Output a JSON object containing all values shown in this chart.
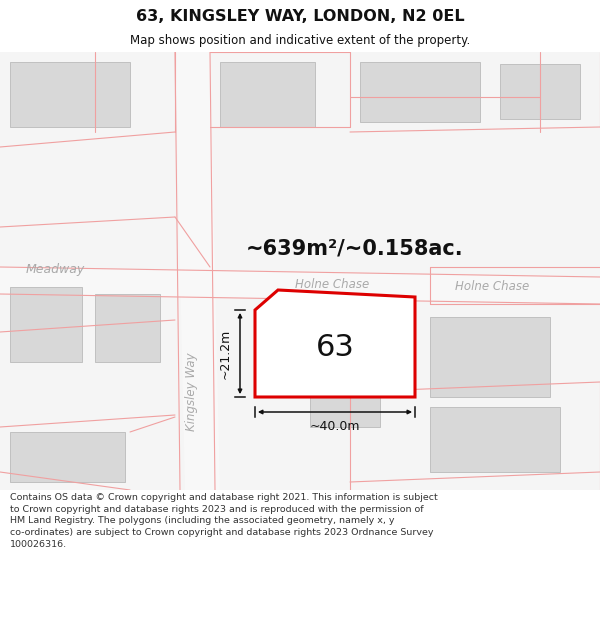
{
  "title": "63, KINGSLEY WAY, LONDON, N2 0EL",
  "subtitle": "Map shows position and indicative extent of the property.",
  "area_text": "~639m²/~0.158ac.",
  "label_63": "63",
  "dim_height": "~21.2m",
  "dim_width": "~40.0m",
  "street_holne_chase_left": "Holne Chase",
  "street_holne_chase_right": "Holne Chase",
  "street_kingsley_way": "Kingsley Way",
  "street_meadway": "Meadway",
  "footer_text": "Contains OS data © Crown copyright and database right 2021. This information is subject to Crown copyright and database rights 2023 and is reproduced with the permission of HM Land Registry. The polygons (including the associated geometry, namely x, y co-ordinates) are subject to Crown copyright and database rights 2023 Ordnance Survey 100026316.",
  "bg_color": "#ffffff",
  "map_bg": "#f0f0f0",
  "building_fill": "#d8d8d8",
  "building_edge": "#c0c0c0",
  "property_edge": "#dd0000",
  "property_fill": "#ffffff",
  "dim_color": "#111111",
  "street_label_color": "#aaaaaa",
  "title_color": "#111111",
  "footer_color": "#333333",
  "pink_line": "#f0a0a0",
  "road_fill": "#f8f8f8"
}
